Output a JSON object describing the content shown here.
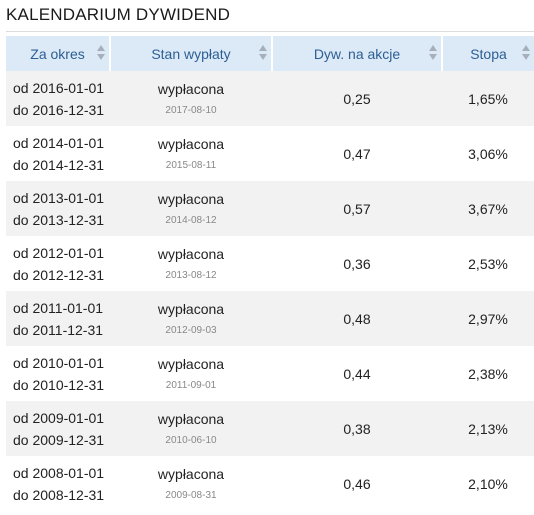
{
  "title": "KALENDARIUM DYWIDEND",
  "columns": [
    "Za okres",
    "Stan wypłaty",
    "Dyw. na akcje",
    "Stopa"
  ],
  "rows": [
    {
      "from": "od 2016-01-01",
      "to": "do 2016-12-31",
      "status": "wypłacona",
      "date": "2017-08-10",
      "dividend": "0,25",
      "yield": "1,65%"
    },
    {
      "from": "od 2014-01-01",
      "to": "do 2014-12-31",
      "status": "wypłacona",
      "date": "2015-08-11",
      "dividend": "0,47",
      "yield": "3,06%"
    },
    {
      "from": "od 2013-01-01",
      "to": "do 2013-12-31",
      "status": "wypłacona",
      "date": "2014-08-12",
      "dividend": "0,57",
      "yield": "3,67%"
    },
    {
      "from": "od 2012-01-01",
      "to": "do 2012-12-31",
      "status": "wypłacona",
      "date": "2013-08-12",
      "dividend": "0,36",
      "yield": "2,53%"
    },
    {
      "from": "od 2011-01-01",
      "to": "do 2011-12-31",
      "status": "wypłacona",
      "date": "2012-09-03",
      "dividend": "0,48",
      "yield": "2,97%"
    },
    {
      "from": "od 2010-01-01",
      "to": "do 2010-12-31",
      "status": "wypłacona",
      "date": "2011-09-01",
      "dividend": "0,44",
      "yield": "2,38%"
    },
    {
      "from": "od 2009-01-01",
      "to": "do 2009-12-31",
      "status": "wypłacona",
      "date": "2010-06-10",
      "dividend": "0,38",
      "yield": "2,13%"
    },
    {
      "from": "od 2008-01-01",
      "to": "do 2008-12-31",
      "status": "wypłacona",
      "date": "2009-08-31",
      "dividend": "0,46",
      "yield": "2,10%"
    }
  ]
}
